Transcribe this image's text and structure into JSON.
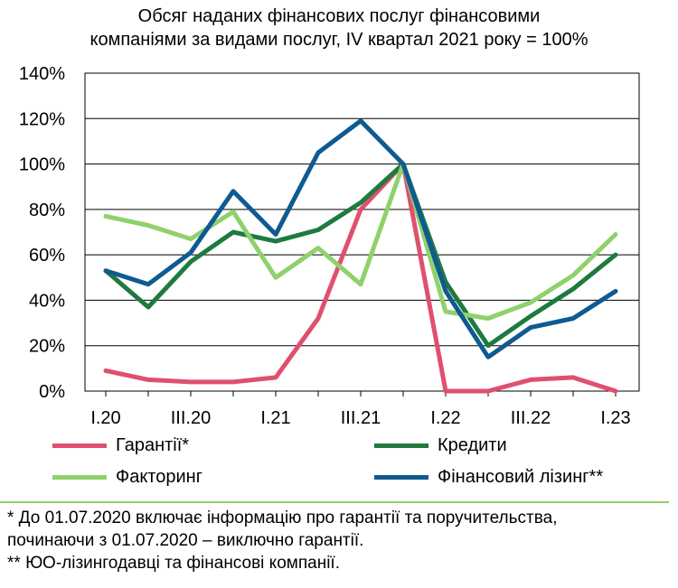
{
  "title_line1": "Обсяг наданих фінансових послуг фінансовими",
  "title_line2": "компаніями за видами послуг, IV квартал 2021 року = 100%",
  "chart_data": {
    "type": "line",
    "title": "Обсяг наданих фінансових послуг фінансовими компаніями за видами послуг, IV квартал 2021 року = 100%",
    "xlabel": "",
    "ylabel": "",
    "ylim": [
      0,
      140
    ],
    "y_ticks": [
      0,
      20,
      40,
      60,
      80,
      100,
      120,
      140
    ],
    "y_tick_labels": [
      "0%",
      "20%",
      "40%",
      "60%",
      "80%",
      "100%",
      "120%",
      "140%"
    ],
    "x": [
      "I.20",
      "II.20",
      "III.20",
      "IV.20",
      "I.21",
      "II.21",
      "III.21",
      "IV.21",
      "I.22",
      "II.22",
      "III.22",
      "IV.22",
      "I.23"
    ],
    "x_tick_labels": [
      "I.20",
      "III.20",
      "I.21",
      "III.21",
      "I.22",
      "III.22",
      "I.23"
    ],
    "x_tick_indices": [
      0,
      2,
      4,
      6,
      8,
      10,
      12
    ],
    "grid": "horizontal",
    "series": [
      {
        "name": "Гарантії*",
        "color": "#e0506e",
        "values": [
          9,
          5,
          4,
          4,
          6,
          32,
          80,
          100,
          0,
          0,
          5,
          6,
          0
        ]
      },
      {
        "name": "Кредити",
        "color": "#1e7a3e",
        "values": [
          53,
          37,
          57,
          70,
          66,
          71,
          83,
          100,
          48,
          20,
          33,
          45,
          60
        ]
      },
      {
        "name": "Факторинг",
        "color": "#8fd16b",
        "values": [
          77,
          73,
          67,
          79,
          50,
          63,
          47,
          100,
          35,
          32,
          39,
          51,
          69
        ]
      },
      {
        "name": "Фінансовий лізинг**",
        "color": "#0f5a91",
        "values": [
          53,
          47,
          61,
          88,
          69,
          105,
          119,
          100,
          44,
          15,
          28,
          32,
          44
        ]
      }
    ]
  },
  "legend": [
    {
      "label": "Гарантії*",
      "color": "#e0506e"
    },
    {
      "label": "Кредити",
      "color": "#1e7a3e"
    },
    {
      "label": "Факторинг",
      "color": "#8fd16b"
    },
    {
      "label": "Фінансовий лізинг**",
      "color": "#0f5a91"
    }
  ],
  "footnotes": [
    "* До 01.07.2020 включає інформацію про гарантії та поручительства,",
    "починаючи з 01.07.2020 – виключно гарантії.",
    "** ЮО-лізингодавці та фінансові компанії."
  ]
}
